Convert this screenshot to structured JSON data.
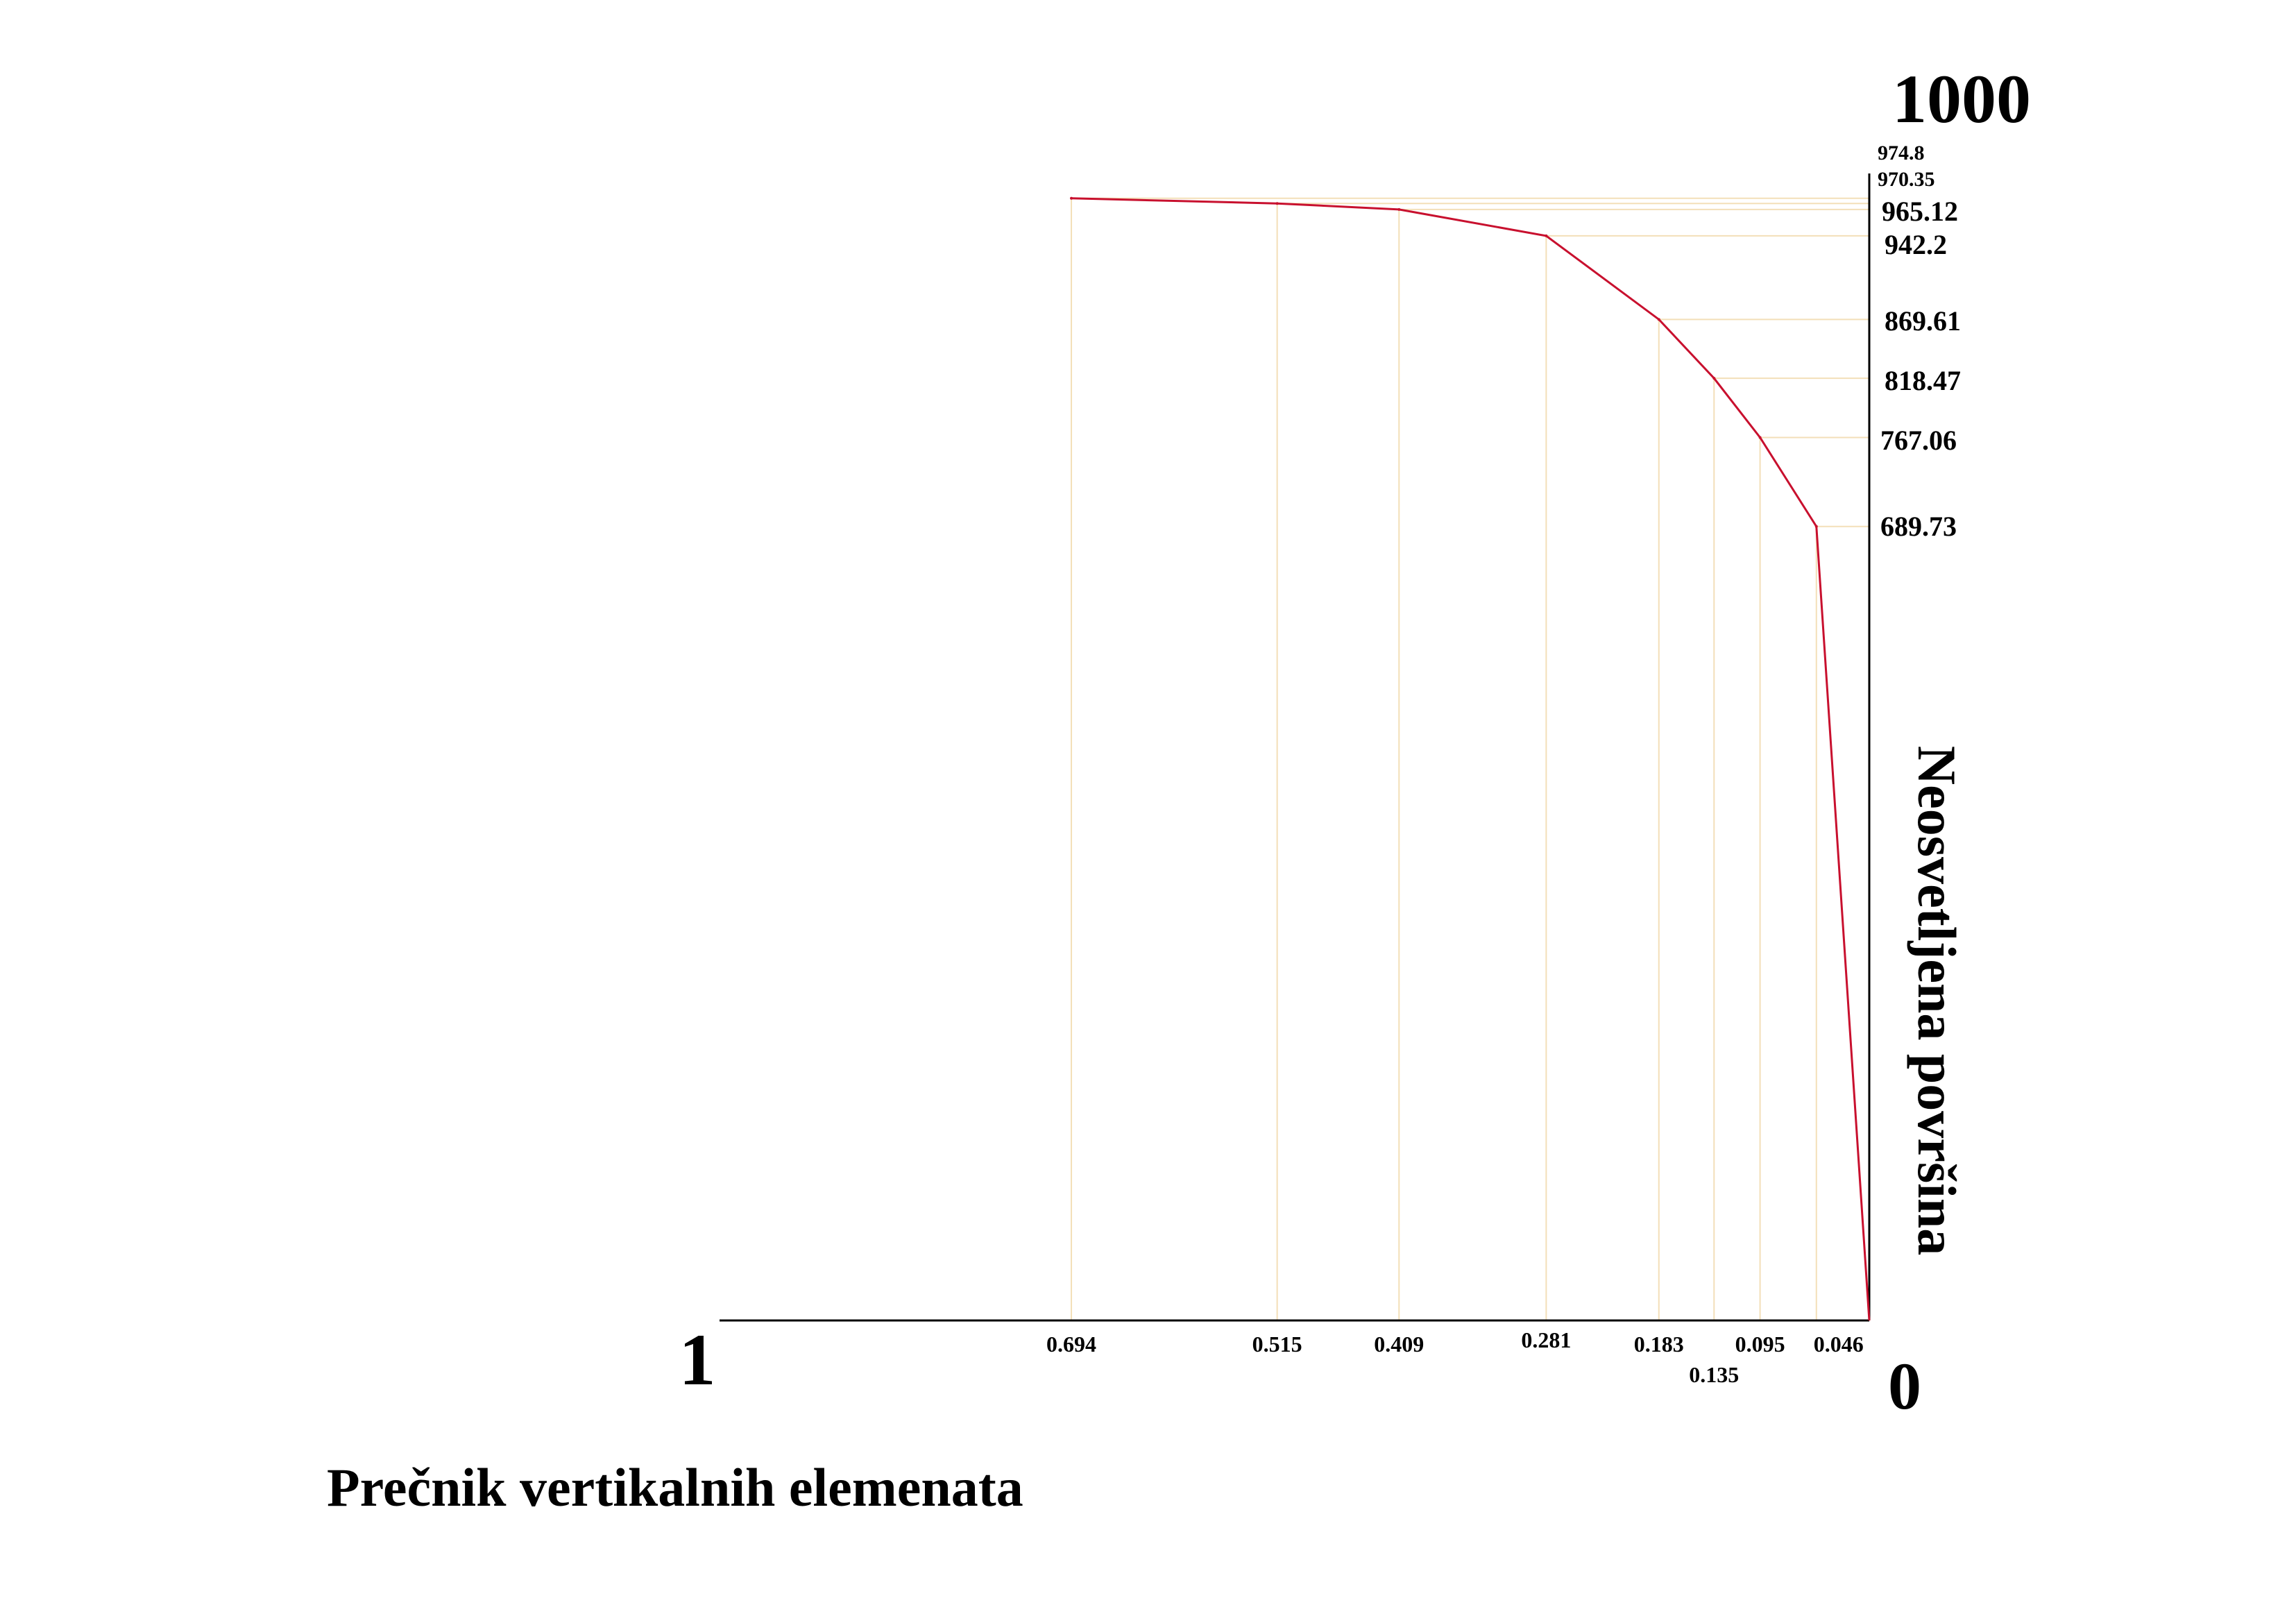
{
  "chart_data": {
    "type": "line",
    "title": "",
    "xlabel": "Prečnik vertikalnih elemenata",
    "ylabel": "Neosvetljena površina",
    "xlim": [
      1,
      0
    ],
    "ylim": [
      0,
      1000
    ],
    "x_axis_reversed": true,
    "x_min_label": "1",
    "x_max_label": "0",
    "y_max_label": "1000",
    "grid": false,
    "legend": "none",
    "series": [
      {
        "name": "Neosvetljena površina",
        "color": "#c8102e",
        "x": [
          0.694,
          0.515,
          0.409,
          0.281,
          0.183,
          0.135,
          0.095,
          0.046,
          0
        ],
        "y": [
          974.8,
          970.35,
          965.12,
          942.2,
          869.61,
          818.47,
          767.06,
          689.73,
          0
        ]
      }
    ],
    "x_tick_labels": [
      "0.694",
      "0.515",
      "0.409",
      "0.281",
      "0.183",
      "0.135",
      "0.095",
      "0.046"
    ],
    "y_tick_labels": [
      "974.8",
      "970.35",
      "965.12",
      "942.2",
      "869.61",
      "818.47",
      "767.06",
      "689.73"
    ],
    "guide_color": "#f3dfb8"
  }
}
